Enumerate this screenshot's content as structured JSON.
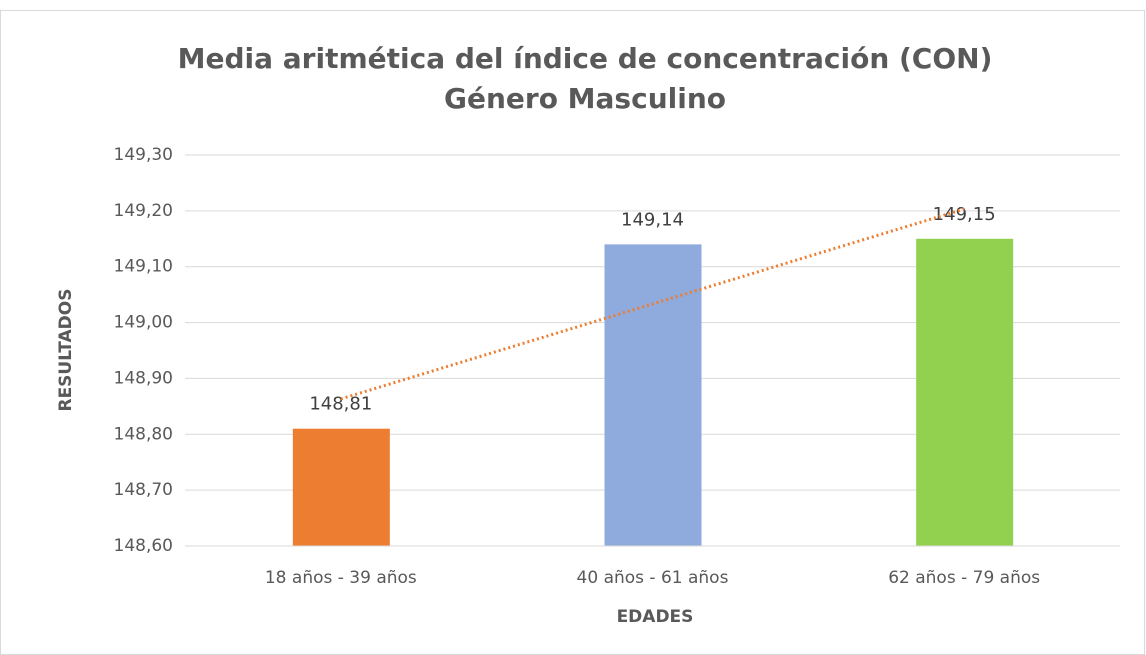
{
  "chart_data": {
    "type": "bar",
    "title": "Media aritmética del índice de concentración (CON)",
    "subtitle": "Género Masculino",
    "x_label": "EDADES",
    "y_label": "RESULTADOS",
    "categories": [
      "18 años - 39 años",
      "40 años - 61 años",
      "62 años - 79 años"
    ],
    "values": [
      148.81,
      149.14,
      149.15
    ],
    "value_labels": [
      "148,81",
      "149,14",
      "149,15"
    ],
    "colors": [
      "#ed7d31",
      "#8faadc",
      "#92d050"
    ],
    "ylim": [
      148.6,
      149.3
    ],
    "yticks": [
      {
        "value": 148.6,
        "label": "148,60"
      },
      {
        "value": 148.7,
        "label": "148,70"
      },
      {
        "value": 148.8,
        "label": "148,80"
      },
      {
        "value": 148.9,
        "label": "148,90"
      },
      {
        "value": 149.0,
        "label": "149,00"
      },
      {
        "value": 149.1,
        "label": "149,10"
      },
      {
        "value": 149.2,
        "label": "149,20"
      },
      {
        "value": 149.3,
        "label": "149,30"
      }
    ],
    "grid": true,
    "trendline": {
      "type": "linear",
      "color": "#ed7d31"
    }
  }
}
